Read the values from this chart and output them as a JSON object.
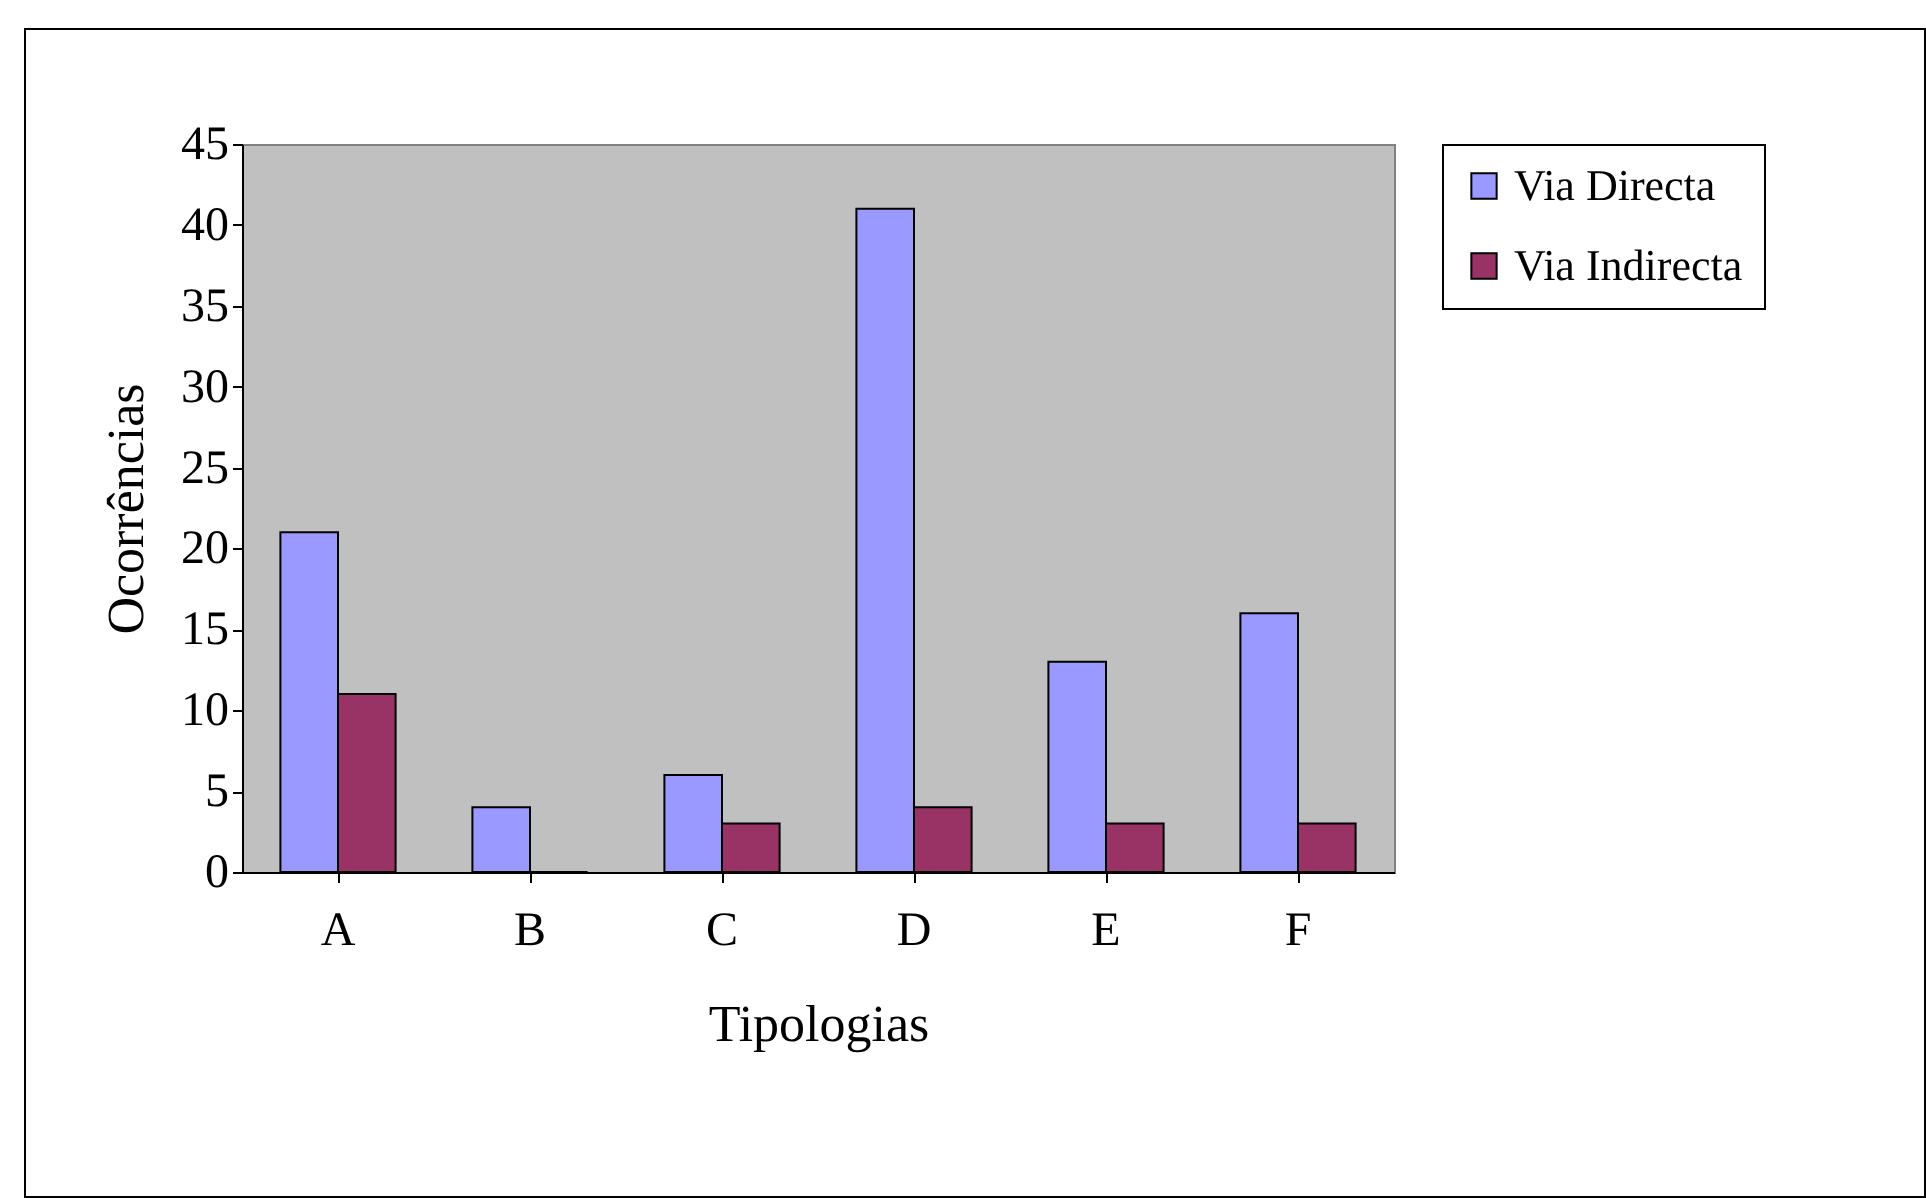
{
  "chart_data": {
    "type": "bar",
    "xlabel": "Tipologias",
    "ylabel": "Ocorrências",
    "categories": [
      "A",
      "B",
      "C",
      "D",
      "E",
      "F"
    ],
    "series": [
      {
        "name": "Via Directa",
        "color": "#9999ff",
        "values": [
          21,
          4,
          6,
          41,
          13,
          16
        ]
      },
      {
        "name": "Via Indirecta",
        "color": "#993366",
        "values": [
          11,
          0,
          3,
          4,
          3,
          3
        ]
      }
    ],
    "ylim": [
      0,
      45
    ],
    "yticks": [
      0,
      5,
      10,
      15,
      20,
      25,
      30,
      35,
      40,
      45
    ],
    "grid": false,
    "legend": "right"
  }
}
